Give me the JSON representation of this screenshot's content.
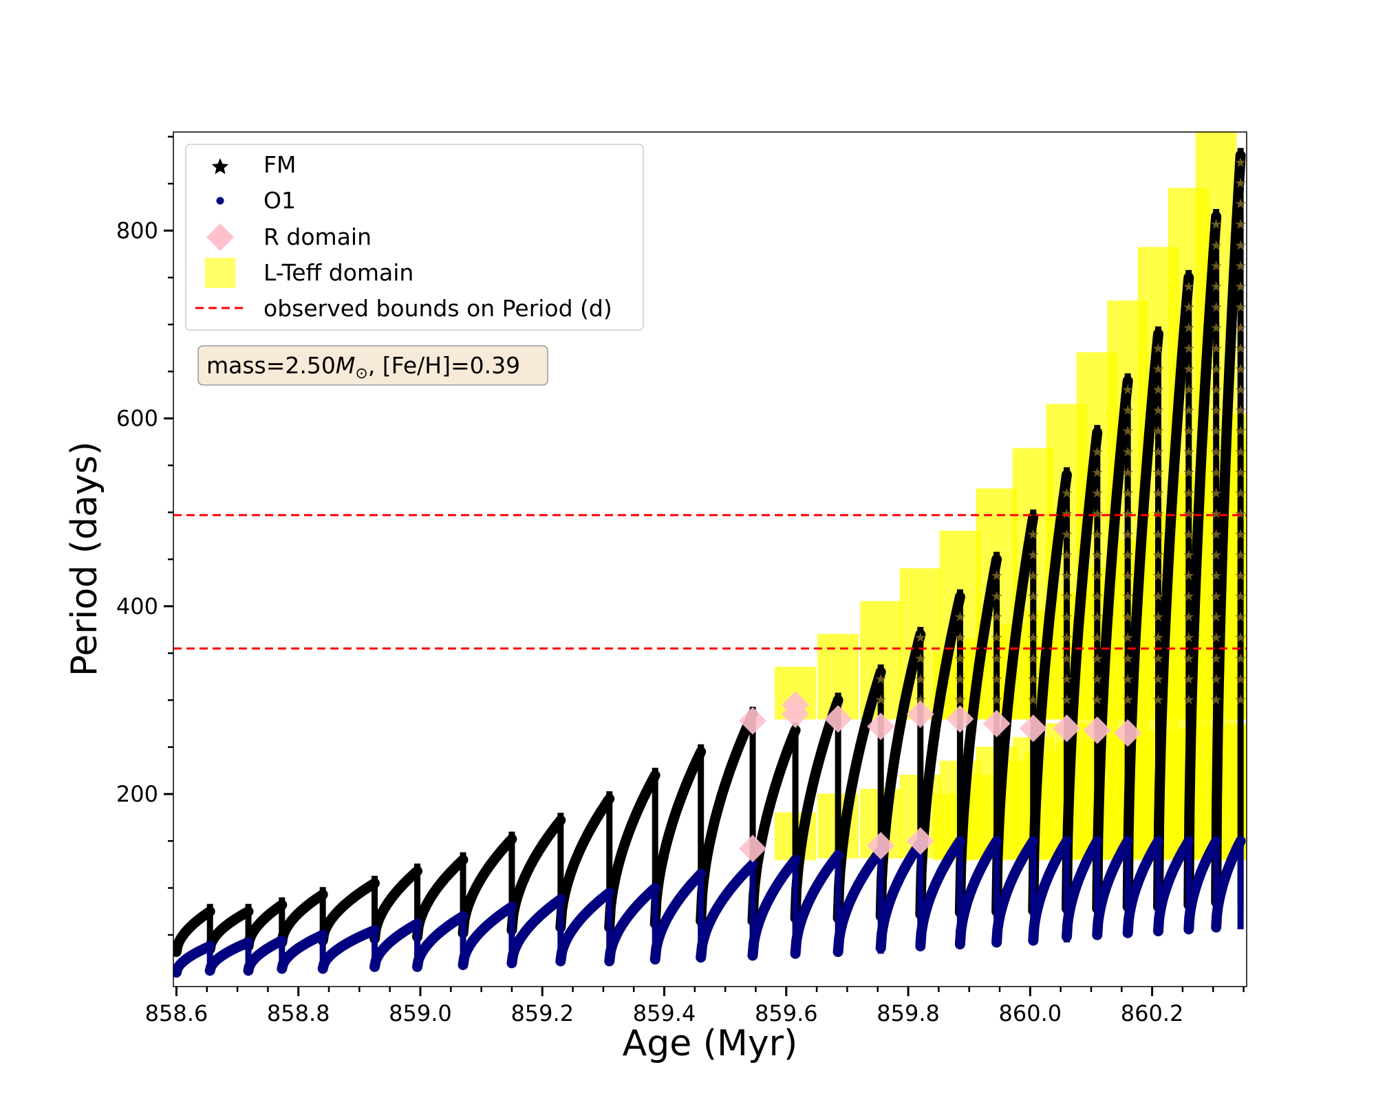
{
  "chart_data": {
    "type": "scatter",
    "xlabel": "Age (Myr)",
    "ylabel": "Period (days)",
    "xlim": [
      858.595,
      860.355
    ],
    "ylim": [
      -5,
      905
    ],
    "x_ticks": [
      858.6,
      858.8,
      859.0,
      859.2,
      859.4,
      859.6,
      859.8,
      860.0,
      860.2
    ],
    "x_tick_labels": [
      "858.6",
      "858.8",
      "859.0",
      "859.2",
      "859.4",
      "859.6",
      "859.8",
      "860.0",
      "860.2"
    ],
    "y_ticks": [
      200,
      400,
      600,
      800
    ],
    "y_tick_labels": [
      "200",
      "400",
      "600",
      "800"
    ],
    "grid": false,
    "legend_position": "top-left",
    "legend": [
      {
        "label": "FM",
        "marker": "star",
        "color": "#000000"
      },
      {
        "label": "O1",
        "marker": "circle",
        "color": "#000080"
      },
      {
        "label": "R domain",
        "marker": "diamond",
        "color": "#ffc0cb"
      },
      {
        "label": "L-Teff domain",
        "marker": "square",
        "color": "#ffff00"
      },
      {
        "label": "observed bounds on Period (d)",
        "marker": "dashed-line",
        "color": "#ff0000"
      }
    ],
    "annotation": {
      "prefix": "mass=2.50",
      "symbol": "M",
      "subscript": "⊙",
      "suffix": ", [Fe/H]=0.39"
    },
    "hlines": [
      {
        "y": 497,
        "color": "#ff0000",
        "style": "dashed"
      },
      {
        "y": 355,
        "color": "#ff0000",
        "style": "dashed"
      }
    ],
    "pulses": [
      {
        "start": 858.6,
        "end": 858.655,
        "fm_min": 32,
        "fm_max": 75,
        "o1_min": 10,
        "o1_max": 38
      },
      {
        "start": 858.655,
        "end": 858.718,
        "fm_min": 35,
        "fm_max": 75,
        "o1_min": 12,
        "o1_max": 42
      },
      {
        "start": 858.718,
        "end": 858.773,
        "fm_min": 38,
        "fm_max": 82,
        "o1_min": 12,
        "o1_max": 44
      },
      {
        "start": 858.773,
        "end": 858.84,
        "fm_min": 42,
        "fm_max": 93,
        "o1_min": 14,
        "o1_max": 50
      },
      {
        "start": 858.84,
        "end": 858.925,
        "fm_min": 44,
        "fm_max": 105,
        "o1_min": 14,
        "o1_max": 55
      },
      {
        "start": 858.925,
        "end": 858.995,
        "fm_min": 46,
        "fm_max": 118,
        "o1_min": 16,
        "o1_max": 62
      },
      {
        "start": 858.995,
        "end": 859.07,
        "fm_min": 48,
        "fm_max": 130,
        "o1_min": 16,
        "o1_max": 70
      },
      {
        "start": 859.07,
        "end": 859.15,
        "fm_min": 52,
        "fm_max": 152,
        "o1_min": 18,
        "o1_max": 80
      },
      {
        "start": 859.15,
        "end": 859.23,
        "fm_min": 55,
        "fm_max": 172,
        "o1_min": 20,
        "o1_max": 88
      },
      {
        "start": 859.23,
        "end": 859.31,
        "fm_min": 58,
        "fm_max": 195,
        "o1_min": 22,
        "o1_max": 95
      },
      {
        "start": 859.31,
        "end": 859.385,
        "fm_min": 58,
        "fm_max": 220,
        "o1_min": 22,
        "o1_max": 100
      },
      {
        "start": 859.385,
        "end": 859.46,
        "fm_min": 62,
        "fm_max": 245,
        "o1_min": 24,
        "o1_max": 115
      },
      {
        "start": 859.46,
        "end": 859.545,
        "fm_min": 65,
        "fm_max": 285,
        "o1_min": 26,
        "o1_max": 125
      },
      {
        "start": 859.545,
        "end": 859.615,
        "fm_min": 65,
        "fm_max": 268,
        "o1_min": 28,
        "o1_max": 130
      },
      {
        "start": 859.615,
        "end": 859.685,
        "fm_min": 68,
        "fm_max": 300,
        "o1_min": 30,
        "o1_max": 135
      },
      {
        "start": 859.685,
        "end": 859.755,
        "fm_min": 68,
        "fm_max": 330,
        "o1_min": 32,
        "o1_max": 140
      },
      {
        "start": 859.755,
        "end": 859.82,
        "fm_min": 70,
        "fm_max": 370,
        "o1_min": 36,
        "o1_max": 148
      },
      {
        "start": 859.82,
        "end": 859.885,
        "fm_min": 72,
        "fm_max": 410,
        "o1_min": 38,
        "o1_max": 150
      },
      {
        "start": 859.885,
        "end": 859.945,
        "fm_min": 74,
        "fm_max": 450,
        "o1_min": 40,
        "o1_max": 150
      },
      {
        "start": 859.945,
        "end": 860.005,
        "fm_min": 75,
        "fm_max": 495,
        "o1_min": 42,
        "o1_max": 150
      },
      {
        "start": 860.005,
        "end": 860.06,
        "fm_min": 76,
        "fm_max": 540,
        "o1_min": 44,
        "o1_max": 150
      },
      {
        "start": 860.06,
        "end": 860.11,
        "fm_min": 78,
        "fm_max": 585,
        "o1_min": 48,
        "o1_max": 150
      },
      {
        "start": 860.11,
        "end": 860.16,
        "fm_min": 78,
        "fm_max": 640,
        "o1_min": 50,
        "o1_max": 150
      },
      {
        "start": 860.16,
        "end": 860.21,
        "fm_min": 80,
        "fm_max": 690,
        "o1_min": 52,
        "o1_max": 150
      },
      {
        "start": 860.21,
        "end": 860.26,
        "fm_min": 80,
        "fm_max": 750,
        "o1_min": 54,
        "o1_max": 150
      },
      {
        "start": 860.26,
        "end": 860.305,
        "fm_min": 82,
        "fm_max": 815,
        "o1_min": 56,
        "o1_max": 150
      },
      {
        "start": 860.305,
        "end": 860.345,
        "fm_min": 85,
        "fm_max": 880,
        "o1_min": 58,
        "o1_max": 150
      }
    ],
    "r_domain_points": [
      {
        "x": 859.545,
        "y": 278
      },
      {
        "x": 859.545,
        "y": 142
      },
      {
        "x": 859.615,
        "y": 285
      },
      {
        "x": 859.615,
        "y": 295
      },
      {
        "x": 859.685,
        "y": 280
      },
      {
        "x": 859.755,
        "y": 272
      },
      {
        "x": 859.755,
        "y": 145
      },
      {
        "x": 859.82,
        "y": 285
      },
      {
        "x": 859.82,
        "y": 150
      },
      {
        "x": 859.885,
        "y": 280
      },
      {
        "x": 859.945,
        "y": 275
      },
      {
        "x": 860.005,
        "y": 270
      },
      {
        "x": 860.06,
        "y": 270
      },
      {
        "x": 860.11,
        "y": 268
      },
      {
        "x": 860.16,
        "y": 265
      }
    ],
    "lteff_segments": [
      {
        "x": 859.615,
        "ymin": 300,
        "ymax": 315
      },
      {
        "x": 859.685,
        "ymin": 300,
        "ymax": 350
      },
      {
        "x": 859.755,
        "ymin": 300,
        "ymax": 385
      },
      {
        "x": 859.82,
        "ymin": 300,
        "ymax": 420
      },
      {
        "x": 859.885,
        "ymin": 300,
        "ymax": 460
      },
      {
        "x": 859.945,
        "ymin": 300,
        "ymax": 505
      },
      {
        "x": 860.005,
        "ymin": 300,
        "ymax": 548
      },
      {
        "x": 860.06,
        "ymin": 300,
        "ymax": 595
      },
      {
        "x": 860.11,
        "ymin": 300,
        "ymax": 650
      },
      {
        "x": 860.16,
        "ymin": 300,
        "ymax": 705
      },
      {
        "x": 860.21,
        "ymin": 300,
        "ymax": 762
      },
      {
        "x": 860.26,
        "ymin": 300,
        "ymax": 825
      },
      {
        "x": 860.305,
        "ymin": 300,
        "ymax": 888
      },
      {
        "x": 859.615,
        "ymin": 150,
        "ymax": 160
      },
      {
        "x": 859.685,
        "ymin": 152,
        "ymax": 180
      },
      {
        "x": 859.755,
        "ymin": 152,
        "ymax": 185
      },
      {
        "x": 859.82,
        "ymin": 152,
        "ymax": 200
      },
      {
        "x": 859.885,
        "ymin": 152,
        "ymax": 215
      },
      {
        "x": 859.945,
        "ymin": 152,
        "ymax": 230
      },
      {
        "x": 860.005,
        "ymin": 152,
        "ymax": 240
      },
      {
        "x": 860.06,
        "ymin": 152,
        "ymax": 255
      },
      {
        "x": 860.11,
        "ymin": 152,
        "ymax": 265
      },
      {
        "x": 860.16,
        "ymin": 152,
        "ymax": 272
      },
      {
        "x": 860.21,
        "ymin": 152,
        "ymax": 275
      },
      {
        "x": 860.26,
        "ymin": 152,
        "ymax": 275
      },
      {
        "x": 860.305,
        "ymin": 152,
        "ymax": 275
      },
      {
        "x": 859.875,
        "ymin": 300,
        "ymax": 330
      },
      {
        "x": 859.925,
        "ymin": 300,
        "ymax": 345
      },
      {
        "x": 859.975,
        "ymin": 300,
        "ymax": 360
      },
      {
        "x": 860.025,
        "ymin": 300,
        "ymax": 375
      },
      {
        "x": 860.075,
        "ymin": 300,
        "ymax": 395
      },
      {
        "x": 860.125,
        "ymin": 300,
        "ymax": 420
      },
      {
        "x": 860.175,
        "ymin": 300,
        "ymax": 450
      },
      {
        "x": 860.225,
        "ymin": 300,
        "ymax": 480
      },
      {
        "x": 860.275,
        "ymin": 300,
        "ymax": 520
      },
      {
        "x": 860.325,
        "ymin": 300,
        "ymax": 560
      },
      {
        "x": 860.35,
        "ymin": 300,
        "ymax": 585
      },
      {
        "x": 859.875,
        "ymin": 150,
        "ymax": 180
      },
      {
        "x": 859.925,
        "ymin": 150,
        "ymax": 200
      },
      {
        "x": 859.975,
        "ymin": 150,
        "ymax": 215
      },
      {
        "x": 860.025,
        "ymin": 150,
        "ymax": 225
      },
      {
        "x": 860.075,
        "ymin": 150,
        "ymax": 235
      },
      {
        "x": 860.125,
        "ymin": 150,
        "ymax": 240
      },
      {
        "x": 860.175,
        "ymin": 150,
        "ymax": 245
      },
      {
        "x": 860.225,
        "ymin": 150,
        "ymax": 248
      },
      {
        "x": 860.275,
        "ymin": 150,
        "ymax": 250
      },
      {
        "x": 860.325,
        "ymin": 150,
        "ymax": 252
      },
      {
        "x": 860.35,
        "ymin": 150,
        "ymax": 255
      }
    ]
  }
}
